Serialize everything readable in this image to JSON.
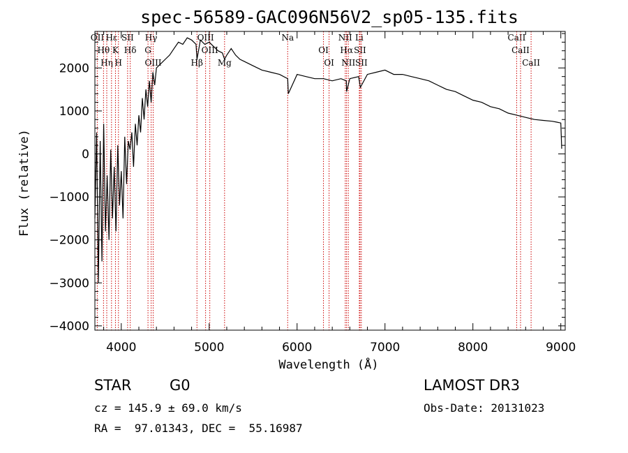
{
  "chart_data": {
    "type": "line",
    "title": "spec-56589-GAC096N56V2_sp05-135.fits",
    "xlabel": "Wavelength (Å)",
    "ylabel": "Flux (relative)",
    "xlim": [
      3700,
      9050
    ],
    "ylim": [
      -4100,
      2850
    ],
    "xticks": [
      4000,
      5000,
      6000,
      7000,
      8000,
      9000
    ],
    "xtick_labels": [
      "4000",
      "5000",
      "6000",
      "7000",
      "8000",
      "9000"
    ],
    "yticks": [
      -4000,
      -3000,
      -2000,
      -1000,
      0,
      1000,
      2000
    ],
    "ytick_labels": [
      "−4000",
      "−3000",
      "−2000",
      "−1000",
      "0",
      "1000",
      "2000"
    ],
    "spectrum": {
      "x": [
        3700,
        3720,
        3740,
        3760,
        3780,
        3800,
        3820,
        3840,
        3860,
        3880,
        3900,
        3920,
        3940,
        3960,
        3980,
        4000,
        4020,
        4040,
        4060,
        4080,
        4100,
        4120,
        4140,
        4160,
        4180,
        4200,
        4220,
        4240,
        4260,
        4280,
        4300,
        4320,
        4340,
        4360,
        4380,
        4400,
        4450,
        4500,
        4550,
        4600,
        4650,
        4700,
        4750,
        4800,
        4850,
        4861,
        4900,
        4950,
        5000,
        5050,
        5100,
        5150,
        5175,
        5200,
        5250,
        5300,
        5350,
        5400,
        5500,
        5600,
        5700,
        5800,
        5893,
        5900,
        6000,
        6100,
        6200,
        6300,
        6400,
        6500,
        6560,
        6563,
        6600,
        6700,
        6720,
        6800,
        6900,
        7000,
        7100,
        7200,
        7300,
        7400,
        7500,
        7600,
        7700,
        7800,
        7900,
        8000,
        8100,
        8200,
        8300,
        8400,
        8500,
        8600,
        8700,
        8800,
        8900,
        8950,
        9000,
        9010
      ],
      "y": [
        -1500,
        500,
        -3000,
        300,
        -2500,
        700,
        -1800,
        -500,
        -2000,
        100,
        -1500,
        -300,
        -1800,
        200,
        -1200,
        -400,
        -1500,
        400,
        -700,
        300,
        100,
        500,
        -300,
        700,
        200,
        900,
        500,
        1300,
        800,
        1500,
        1100,
        1700,
        1200,
        1900,
        1600,
        2000,
        2100,
        2200,
        2300,
        2450,
        2600,
        2550,
        2700,
        2650,
        2550,
        2200,
        2650,
        2550,
        2600,
        2500,
        2400,
        2350,
        2200,
        2300,
        2450,
        2300,
        2200,
        2150,
        2050,
        1950,
        1900,
        1850,
        1750,
        1400,
        1850,
        1800,
        1750,
        1750,
        1700,
        1750,
        1700,
        1450,
        1750,
        1800,
        1550,
        1850,
        1900,
        1950,
        1850,
        1850,
        1800,
        1750,
        1700,
        1600,
        1500,
        1450,
        1350,
        1250,
        1200,
        1100,
        1050,
        950,
        900,
        850,
        800,
        780,
        760,
        740,
        720,
        120
      ]
    },
    "lines": [
      {
        "name": "OII",
        "x": 3727
      },
      {
        "name": "Hθ",
        "x": 3798
      },
      {
        "name": "Hη",
        "x": 3835
      },
      {
        "name": "Hε",
        "x": 3889
      },
      {
        "name": "K",
        "x": 3934
      },
      {
        "name": "H",
        "x": 3968
      },
      {
        "name": "SII",
        "x": 4072
      },
      {
        "name": "Hδ",
        "x": 4102
      },
      {
        "name": "OIII",
        "x": 4363
      },
      {
        "name": "Hγ",
        "x": 4340
      },
      {
        "name": "G",
        "x": 4304
      },
      {
        "name": "Hβ",
        "x": 4861
      },
      {
        "name": "OIII",
        "x": 4959
      },
      {
        "name": "OIII",
        "x": 5007
      },
      {
        "name": "Mg",
        "x": 5175
      },
      {
        "name": "Na",
        "x": 5893
      },
      {
        "name": "OI",
        "x": 6300
      },
      {
        "name": "OI",
        "x": 6364
      },
      {
        "name": "NII",
        "x": 6548
      },
      {
        "name": "Hα",
        "x": 6563
      },
      {
        "name": "NII",
        "x": 6583
      },
      {
        "name": "Li",
        "x": 6708
      },
      {
        "name": "SII",
        "x": 6716
      },
      {
        "name": "SII",
        "x": 6731
      },
      {
        "name": "CaII",
        "x": 8498
      },
      {
        "name": "CaII",
        "x": 8542
      },
      {
        "name": "CaII",
        "x": 8662
      }
    ]
  },
  "info": {
    "object_class": "STAR",
    "subclass": "G0",
    "survey": "LAMOST DR3",
    "redshift": "cz = 145.9 ± 69.0 km/s",
    "obs_date": "Obs-Date: 20131023",
    "coords": "RA =  97.01343, DEC =  55.16987"
  }
}
